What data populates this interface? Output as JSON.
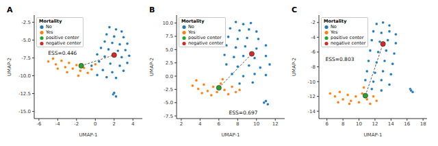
{
  "chart_data": [
    {
      "type": "scatter",
      "title": "A",
      "x_label": "UMAP-1",
      "y_label": "UMAP-2",
      "legend_title": "Mortality",
      "legend": "upper left",
      "xlim": [
        -6.5,
        5
      ],
      "xticks": [
        -6,
        -4,
        -2,
        0,
        2,
        4
      ],
      "ylim": [
        -16,
        -1.5
      ],
      "yticks": [
        -2.5,
        {
          "value": -5,
          "label": "-5.0"
        },
        -7.5,
        {
          "value": -10,
          "label": "-10.0"
        },
        -12.5,
        {
          "value": -15,
          "label": "-15.0"
        }
      ],
      "series": [
        {
          "name": "No",
          "color": "#1f77b4",
          "x": [
            1.5,
            2.2,
            2.8,
            1.2,
            2.0,
            3.0,
            1.0,
            1.8,
            2.6,
            3.4,
            0.6,
            1.4,
            2.4,
            3.2,
            0.2,
            1.0,
            2.8,
            3.6,
            0.4,
            1.6,
            2.6,
            3.4,
            -0.4,
            0.8,
            1.8,
            3.0,
            0.2,
            1.2,
            2.2,
            1.9,
            2.2,
            2.0
          ],
          "y": [
            -3.2,
            -3.5,
            -3.8,
            -4.2,
            -4.5,
            -4.6,
            -5.2,
            -5.4,
            -5.6,
            -5.5,
            -6.1,
            -6.3,
            -6.5,
            -6.4,
            -7.0,
            -7.3,
            -7.4,
            -7.2,
            -8.0,
            -8.3,
            -8.6,
            -8.2,
            -8.6,
            -9.2,
            -9.5,
            -9.3,
            -9.9,
            -10.2,
            -10.3,
            -12.6,
            -12.9,
            -12.4
          ]
        },
        {
          "name": "Yes",
          "color": "#ff7f0e",
          "x": [
            -5.0,
            -4.5,
            -4.2,
            -3.6,
            -3.2,
            -2.8,
            -2.4,
            -2.0,
            -1.6,
            -1.2,
            -0.8,
            -0.4,
            0.0,
            -3.0,
            -1.8,
            -4.0
          ],
          "y": [
            -8.0,
            -7.6,
            -8.4,
            -7.9,
            -8.8,
            -8.2,
            -9.0,
            -8.5,
            -9.3,
            -8.9,
            -9.6,
            -9.1,
            -8.4,
            -9.5,
            -10.0,
            -9.0
          ]
        },
        {
          "name": "positive center",
          "color": "#2ca02c",
          "x": [
            -1.5
          ],
          "y": [
            -8.6
          ]
        },
        {
          "name": "negative center",
          "color": "#d62728",
          "x": [
            2.0
          ],
          "y": [
            -7.1
          ]
        }
      ],
      "annotations": [
        {
          "text": "ESS=0.446",
          "x": -3.5,
          "y": -6.8
        }
      ]
    },
    {
      "type": "scatter",
      "title": "B",
      "x_label": "UMAP-1",
      "y_label": "UMAP-2",
      "legend_title": "Mortality",
      "legend": "upper left",
      "xlim": [
        1.5,
        13
      ],
      "xticks": [
        2,
        4,
        6,
        8,
        10,
        12
      ],
      "ylim": [
        -8,
        11.5
      ],
      "yticks": [
        {
          "value": 10,
          "label": "10.0"
        },
        7.5,
        {
          "value": 5,
          "label": "5.0"
        },
        2.5,
        {
          "value": 0,
          "label": "0.0"
        },
        -2.5,
        {
          "value": -5,
          "label": "-5.0"
        },
        -7.5
      ],
      "series": [
        {
          "name": "No",
          "color": "#1f77b4",
          "x": [
            7.8,
            8.6,
            9.4,
            7.2,
            8.2,
            9.2,
            10.0,
            7.0,
            8.0,
            9.0,
            10.2,
            6.8,
            7.8,
            8.8,
            10.0,
            11.0,
            6.6,
            7.6,
            8.6,
            9.8,
            11.0,
            6.8,
            8.0,
            9.2,
            10.4,
            11.4,
            7.4,
            8.6,
            9.8,
            11.0,
            8.2,
            9.6,
            10.8,
            11.2,
            11.0
          ],
          "y": [
            10.2,
            9.8,
            10.0,
            9.0,
            8.6,
            8.8,
            8.4,
            7.4,
            7.0,
            7.2,
            7.0,
            5.8,
            5.4,
            5.6,
            5.2,
            5.8,
            4.0,
            3.6,
            3.8,
            3.4,
            3.8,
            2.2,
            1.8,
            2.0,
            1.6,
            2.2,
            0.4,
            0.0,
            0.4,
            0.2,
            -1.4,
            -1.2,
            -5.0,
            -5.3,
            -4.7
          ]
        },
        {
          "name": "Yes",
          "color": "#ff7f0e",
          "x": [
            3.2,
            3.8,
            4.4,
            4.8,
            5.4,
            5.8,
            6.2,
            6.6,
            7.0,
            7.4,
            7.8,
            4.2,
            5.2,
            6.4,
            3.6,
            8.2
          ],
          "y": [
            -1.8,
            -2.4,
            -1.6,
            -2.8,
            -2.0,
            -3.0,
            -1.4,
            -2.6,
            -3.4,
            -2.0,
            -3.0,
            -3.2,
            -3.6,
            -0.6,
            -0.8,
            -2.6
          ]
        },
        {
          "name": "positive center",
          "color": "#2ca02c",
          "x": [
            6.0
          ],
          "y": [
            -2.2
          ]
        },
        {
          "name": "negative center",
          "color": "#d62728",
          "x": [
            9.5
          ],
          "y": [
            4.2
          ]
        }
      ],
      "annotations": [
        {
          "text": "ESS=0.697",
          "x": 8.6,
          "y": -6.9
        }
      ]
    },
    {
      "type": "scatter",
      "title": "C",
      "x_label": "UMAP-1",
      "y_label": "UMAP-2",
      "legend_title": "Mortality",
      "legend": "upper left",
      "xlim": [
        5,
        18.5
      ],
      "xticks": [
        6,
        8,
        10,
        12,
        14,
        16,
        18
      ],
      "ylim": [
        -15,
        -1
      ],
      "yticks": [
        -2,
        -4,
        -6,
        -8,
        -10,
        -12,
        -14
      ],
      "series": [
        {
          "name": "No",
          "color": "#1f77b4",
          "x": [
            12.2,
            13.0,
            13.8,
            11.8,
            12.8,
            13.8,
            14.6,
            11.6,
            12.6,
            13.6,
            14.6,
            11.4,
            12.4,
            13.4,
            14.4,
            11.2,
            12.2,
            13.2,
            14.2,
            11.0,
            12.0,
            13.0,
            14.0,
            10.8,
            11.8,
            12.8,
            13.8,
            11.6,
            12.8,
            16.4,
            16.7,
            16.5
          ],
          "y": [
            -2.2,
            -2.0,
            -2.4,
            -3.2,
            -3.4,
            -3.2,
            -3.6,
            -4.4,
            -4.6,
            -4.4,
            -4.8,
            -5.8,
            -6.0,
            -5.8,
            -6.2,
            -7.2,
            -7.4,
            -7.2,
            -7.6,
            -8.6,
            -8.8,
            -8.6,
            -9.0,
            -9.8,
            -10.0,
            -9.8,
            -10.4,
            -11.0,
            -11.2,
            -11.0,
            -11.4,
            -11.2
          ]
        },
        {
          "name": "Yes",
          "color": "#ff7f0e",
          "x": [
            6.4,
            7.0,
            7.6,
            8.0,
            8.6,
            9.0,
            9.6,
            10.0,
            10.4,
            11.0,
            11.4,
            11.8,
            7.4,
            8.8,
            12.2,
            10.6
          ],
          "y": [
            -11.6,
            -12.0,
            -11.4,
            -12.4,
            -11.8,
            -12.6,
            -12.0,
            -12.8,
            -11.6,
            -12.4,
            -13.0,
            -12.0,
            -12.8,
            -13.0,
            -12.6,
            -10.8
          ]
        },
        {
          "name": "positive center",
          "color": "#2ca02c",
          "x": [
            10.8
          ],
          "y": [
            -11.9
          ]
        },
        {
          "name": "negative center",
          "color": "#d62728",
          "x": [
            13.0
          ],
          "y": [
            -4.9
          ]
        }
      ],
      "annotations": [
        {
          "text": "ESS=0.803",
          "x": 7.6,
          "y": -7.0
        }
      ]
    }
  ]
}
